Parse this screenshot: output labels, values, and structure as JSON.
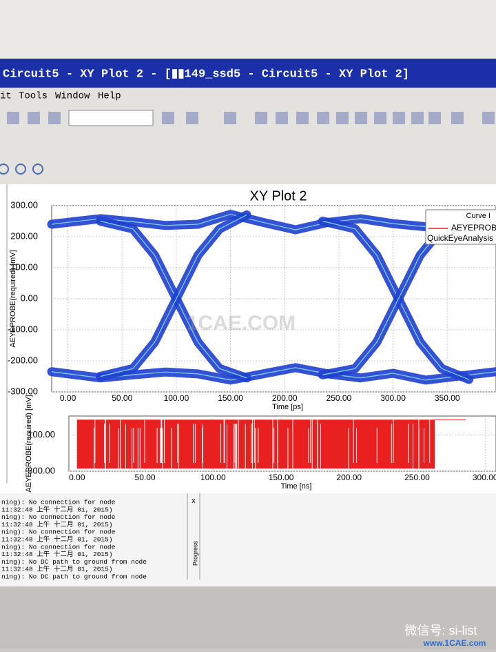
{
  "window": {
    "title": "Circuit5 - XY Plot 2 - [▮▮149_ssd5 - Circuit5 - XY Plot 2]",
    "menu": [
      "it",
      "Tools",
      "Window",
      "Help"
    ]
  },
  "chart_data": [
    {
      "type": "line",
      "title": "XY Plot 2",
      "x_label": "Time [ps]",
      "y_label": "AEYEPROBE(required) [mV]",
      "legend_title": "Curve I",
      "legend_entries": [
        "AEYEPROBE",
        "QuickEyeAnalysis"
      ],
      "legend_color": "#e02020",
      "xlim": [
        -15,
        395
      ],
      "ylim": [
        -300,
        300
      ],
      "grid": true,
      "xticks": [
        {
          "value": 0,
          "label": "0.00"
        },
        {
          "value": 50,
          "label": "50.00"
        },
        {
          "value": 100,
          "label": "100.00"
        },
        {
          "value": 150,
          "label": "150.00"
        },
        {
          "value": 200,
          "label": "200.00"
        },
        {
          "value": 250,
          "label": "250.00"
        },
        {
          "value": 300,
          "label": "300.00"
        },
        {
          "value": 350,
          "label": "350.00"
        }
      ],
      "yticks": [
        {
          "value": -300,
          "label": "-300.00"
        },
        {
          "value": -200,
          "label": "-200.00"
        },
        {
          "value": -100,
          "label": "-100.00"
        },
        {
          "value": 0,
          "label": "0.00"
        },
        {
          "value": 100,
          "label": "100.00"
        },
        {
          "value": 200,
          "label": "200.00"
        },
        {
          "value": 300,
          "label": "300.00"
        }
      ],
      "series": [
        {
          "color": "#1f3fd0",
          "x": [
            -15,
            30,
            60,
            90,
            120,
            150,
            180,
            210,
            240,
            270,
            300,
            330,
            395
          ],
          "values": [
            240,
            258,
            248,
            236,
            240,
            272,
            246,
            222,
            246,
            258,
            242,
            232,
            240
          ]
        },
        {
          "color": "#1f3fd0",
          "x": [
            -15,
            30,
            60,
            90,
            120,
            150,
            180,
            210,
            240,
            270,
            300,
            330,
            395
          ],
          "values": [
            -235,
            -255,
            -245,
            -236,
            -242,
            -262,
            -242,
            -222,
            -242,
            -255,
            -240,
            -262,
            -235
          ]
        },
        {
          "color": "#1f3fd0",
          "x": [
            30,
            60,
            80,
            100,
            120,
            140,
            165
          ],
          "values": [
            250,
            225,
            140,
            0,
            -140,
            -225,
            -255
          ]
        },
        {
          "color": "#1f3fd0",
          "x": [
            30,
            60,
            80,
            100,
            120,
            140,
            165
          ],
          "values": [
            -250,
            -225,
            -140,
            0,
            140,
            225,
            270
          ]
        },
        {
          "color": "#1f3fd0",
          "x": [
            235,
            265,
            285,
            305,
            325,
            345,
            370
          ],
          "values": [
            250,
            225,
            140,
            0,
            -140,
            -225,
            -260
          ]
        },
        {
          "color": "#1f3fd0",
          "x": [
            235,
            265,
            285,
            305,
            325,
            345,
            370
          ],
          "values": [
            -245,
            -225,
            -140,
            0,
            140,
            225,
            255
          ]
        }
      ]
    },
    {
      "type": "band",
      "x_label": "Time [ns]",
      "y_label": "AEYEPROBE(required) [mV]",
      "xlim": [
        -6,
        308
      ],
      "ylim": [
        -300,
        310
      ],
      "grid": true,
      "xticks": [
        {
          "value": 0,
          "label": "0.00"
        },
        {
          "value": 50,
          "label": "50.00"
        },
        {
          "value": 100,
          "label": "100.00"
        },
        {
          "value": 150,
          "label": "150.00"
        },
        {
          "value": 200,
          "label": "200.00"
        },
        {
          "value": 250,
          "label": "250.00"
        },
        {
          "value": 300,
          "label": "300.00"
        }
      ],
      "yticks": [
        {
          "value": 100,
          "label": "100.00"
        },
        {
          "value": -300,
          "label": "-300.00"
        }
      ],
      "series": [
        {
          "color": "#e82020",
          "x": [
            0,
            263
          ],
          "low": [
            -270,
            -270
          ],
          "high": [
            270,
            270
          ]
        }
      ]
    }
  ],
  "log": [
    "ning): No connection for node",
    "11:32:48 上午  十二月 01, 2015)",
    "ning): No connection for node",
    "11:32:48 上午  十二月 01, 2015)",
    "ning): No connection for node",
    "11:32:48 上午  十二月 01, 2015)",
    "ning): No connection for node",
    "11:32:48 上午  十二月 01, 2015)",
    "ning): No DC path to ground from node",
    "11:32:48 上午  十二月 01, 2015)",
    "ning): No DC path to ground from node"
  ],
  "panel_labels": {
    "progress": "Progress",
    "close": "x"
  },
  "watermark": {
    "center": "1CAE.COM",
    "wechat": "微信号: si-list",
    "site": "www.1CAE.com"
  }
}
